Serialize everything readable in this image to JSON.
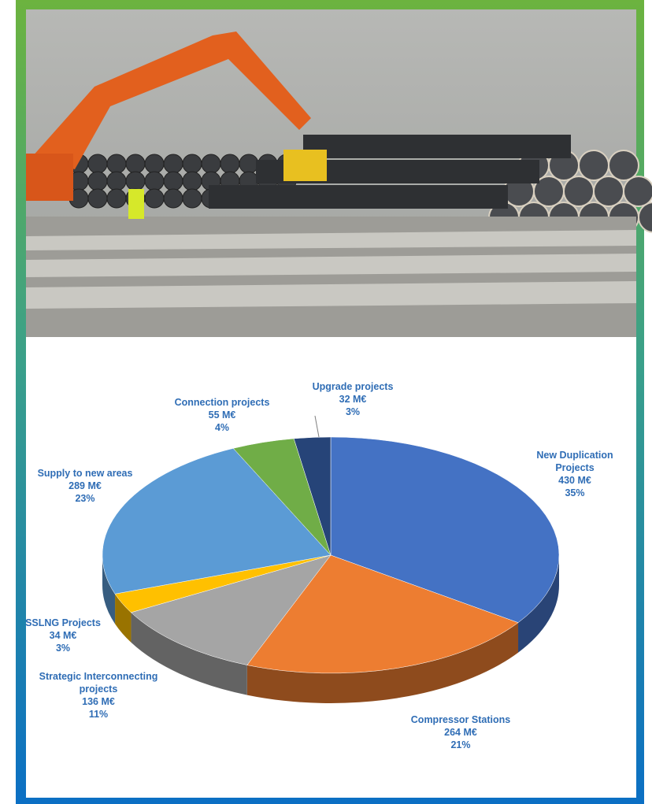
{
  "chart_data": {
    "type": "pie",
    "categories": [
      "New Duplication Projects",
      "Compressor Stations",
      "Strategic Interconnecting projects",
      "SSLNG Projects",
      "Supply to new areas",
      "Connection projects",
      "Upgrade projects"
    ],
    "values": [
      430,
      264,
      136,
      34,
      289,
      55,
      32
    ],
    "value_labels": [
      "430 M€",
      "264 M€",
      "136 M€",
      "34 M€",
      "289 M€",
      "55 M€",
      "32 M€"
    ],
    "percents": [
      35,
      21,
      11,
      3,
      23,
      4,
      3
    ],
    "percent_labels": [
      "35%",
      "21%",
      "11%",
      "3%",
      "23%",
      "4%",
      "3%"
    ],
    "colors": [
      "#4472c4",
      "#ed7d31",
      "#a5a5a5",
      "#ffc000",
      "#5b9bd5",
      "#70ad47",
      "#264478"
    ]
  }
}
